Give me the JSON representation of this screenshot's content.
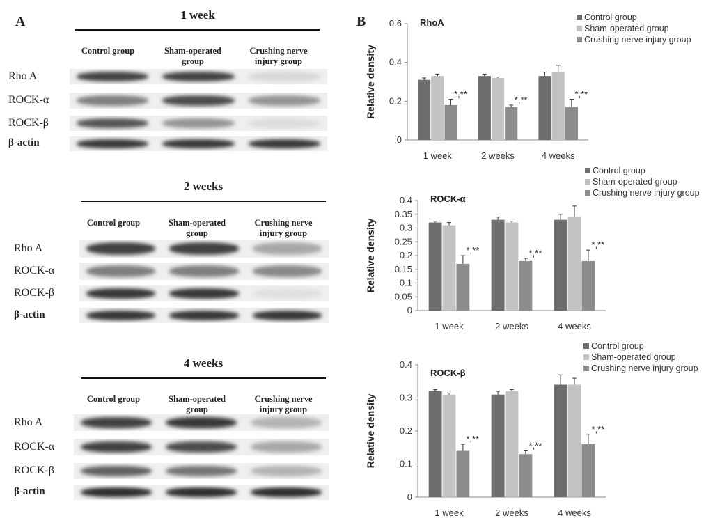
{
  "panels": {
    "a": "A",
    "b": "B"
  },
  "blots": [
    {
      "title": "1 week",
      "columns": [
        "Control group",
        "Sham-operated\ngroup",
        "Crushing nerve\ninjury group"
      ],
      "rows": [
        "Rho A",
        "ROCK-α",
        "ROCK-β",
        "β-actin"
      ],
      "intensity": [
        [
          0.85,
          0.85,
          0.12
        ],
        [
          0.55,
          0.8,
          0.45
        ],
        [
          0.75,
          0.45,
          0.1
        ],
        [
          0.9,
          0.9,
          0.9
        ]
      ]
    },
    {
      "title": "2 weeks",
      "columns": [
        "Control group",
        "Sham-operated\ngroup",
        "Crushing nerve\ninjury group"
      ],
      "rows": [
        "Rho A",
        "ROCK-α",
        "ROCK-β",
        "β-actin"
      ],
      "intensity": [
        [
          0.85,
          0.85,
          0.35
        ],
        [
          0.55,
          0.55,
          0.5
        ],
        [
          0.9,
          0.9,
          0.08
        ],
        [
          0.9,
          0.9,
          0.9
        ]
      ]
    },
    {
      "title": "4 weeks",
      "columns": [
        "Control group",
        "Sham-operated\ngroup",
        "Crushing nerve\ninjury group"
      ],
      "rows": [
        "Rho A",
        "ROCK-α",
        "ROCK-β",
        "β-actin"
      ],
      "intensity": [
        [
          0.85,
          0.9,
          0.3
        ],
        [
          0.85,
          0.8,
          0.35
        ],
        [
          0.7,
          0.6,
          0.3
        ],
        [
          0.95,
          0.95,
          0.95
        ]
      ]
    }
  ],
  "chart_data": [
    {
      "type": "bar",
      "title": "RhoA",
      "categories": [
        "1 week",
        "2 weeks",
        "4 weeks"
      ],
      "ylabel": "Relative density",
      "ylim": [
        0,
        0.6
      ],
      "yticks": [
        "0",
        "0.2",
        "0.4",
        "0.6"
      ],
      "series": [
        {
          "name": "Control group",
          "values": [
            0.31,
            0.33,
            0.33
          ],
          "errors": [
            0.01,
            0.01,
            0.02
          ],
          "color": "#6d6d6d"
        },
        {
          "name": "Sham-operated group",
          "values": [
            0.33,
            0.32,
            0.35
          ],
          "errors": [
            0.01,
            0.005,
            0.035
          ],
          "color": "#c2c2c2"
        },
        {
          "name": "Crushing nerve injury group",
          "values": [
            0.18,
            0.17,
            0.17
          ],
          "errors": [
            0.03,
            0.01,
            0.04
          ],
          "color": "#8d8d8d"
        }
      ],
      "annotations": [
        "*,**",
        "*,**",
        "*,**"
      ],
      "grid": false,
      "legend": "top-right"
    },
    {
      "type": "bar",
      "title": "ROCK-α",
      "categories": [
        "1 week",
        "2 weeks",
        "4 weeks"
      ],
      "ylabel": "Relative density",
      "ylim": [
        0,
        0.4
      ],
      "yticks": [
        "0",
        "0.05",
        "0.1",
        "0.15",
        "0.2",
        "0.25",
        "0.3",
        "0.35",
        "0.4"
      ],
      "series": [
        {
          "name": "Control group",
          "values": [
            0.32,
            0.33,
            0.33
          ],
          "errors": [
            0.005,
            0.01,
            0.02
          ],
          "color": "#6d6d6d"
        },
        {
          "name": "Sham-operated group",
          "values": [
            0.31,
            0.32,
            0.34
          ],
          "errors": [
            0.01,
            0.005,
            0.04
          ],
          "color": "#c2c2c2"
        },
        {
          "name": "Crushing nerve injury group",
          "values": [
            0.17,
            0.18,
            0.18
          ],
          "errors": [
            0.03,
            0.01,
            0.04
          ],
          "color": "#8d8d8d"
        }
      ],
      "annotations": [
        "*,**",
        "*,**",
        "*,**"
      ],
      "grid": false,
      "legend": "top-right"
    },
    {
      "type": "bar",
      "title": "ROCK-β",
      "categories": [
        "1 week",
        "2 weeks",
        "4 weeks"
      ],
      "ylabel": "Relative density",
      "ylim": [
        0,
        0.4
      ],
      "yticks": [
        "0",
        "0.1",
        "0.2",
        "0.3",
        "0.4"
      ],
      "series": [
        {
          "name": "Control group",
          "values": [
            0.32,
            0.31,
            0.34
          ],
          "errors": [
            0.005,
            0.01,
            0.03
          ],
          "color": "#6d6d6d"
        },
        {
          "name": "Sham-operated group",
          "values": [
            0.31,
            0.32,
            0.34
          ],
          "errors": [
            0.005,
            0.005,
            0.02
          ],
          "color": "#c2c2c2"
        },
        {
          "name": "Crushing nerve injury group",
          "values": [
            0.14,
            0.13,
            0.16
          ],
          "errors": [
            0.02,
            0.01,
            0.03
          ],
          "color": "#8d8d8d"
        }
      ],
      "annotations": [
        "*,**",
        "*,**",
        "*,**"
      ],
      "grid": false,
      "legend": "top-right"
    }
  ]
}
